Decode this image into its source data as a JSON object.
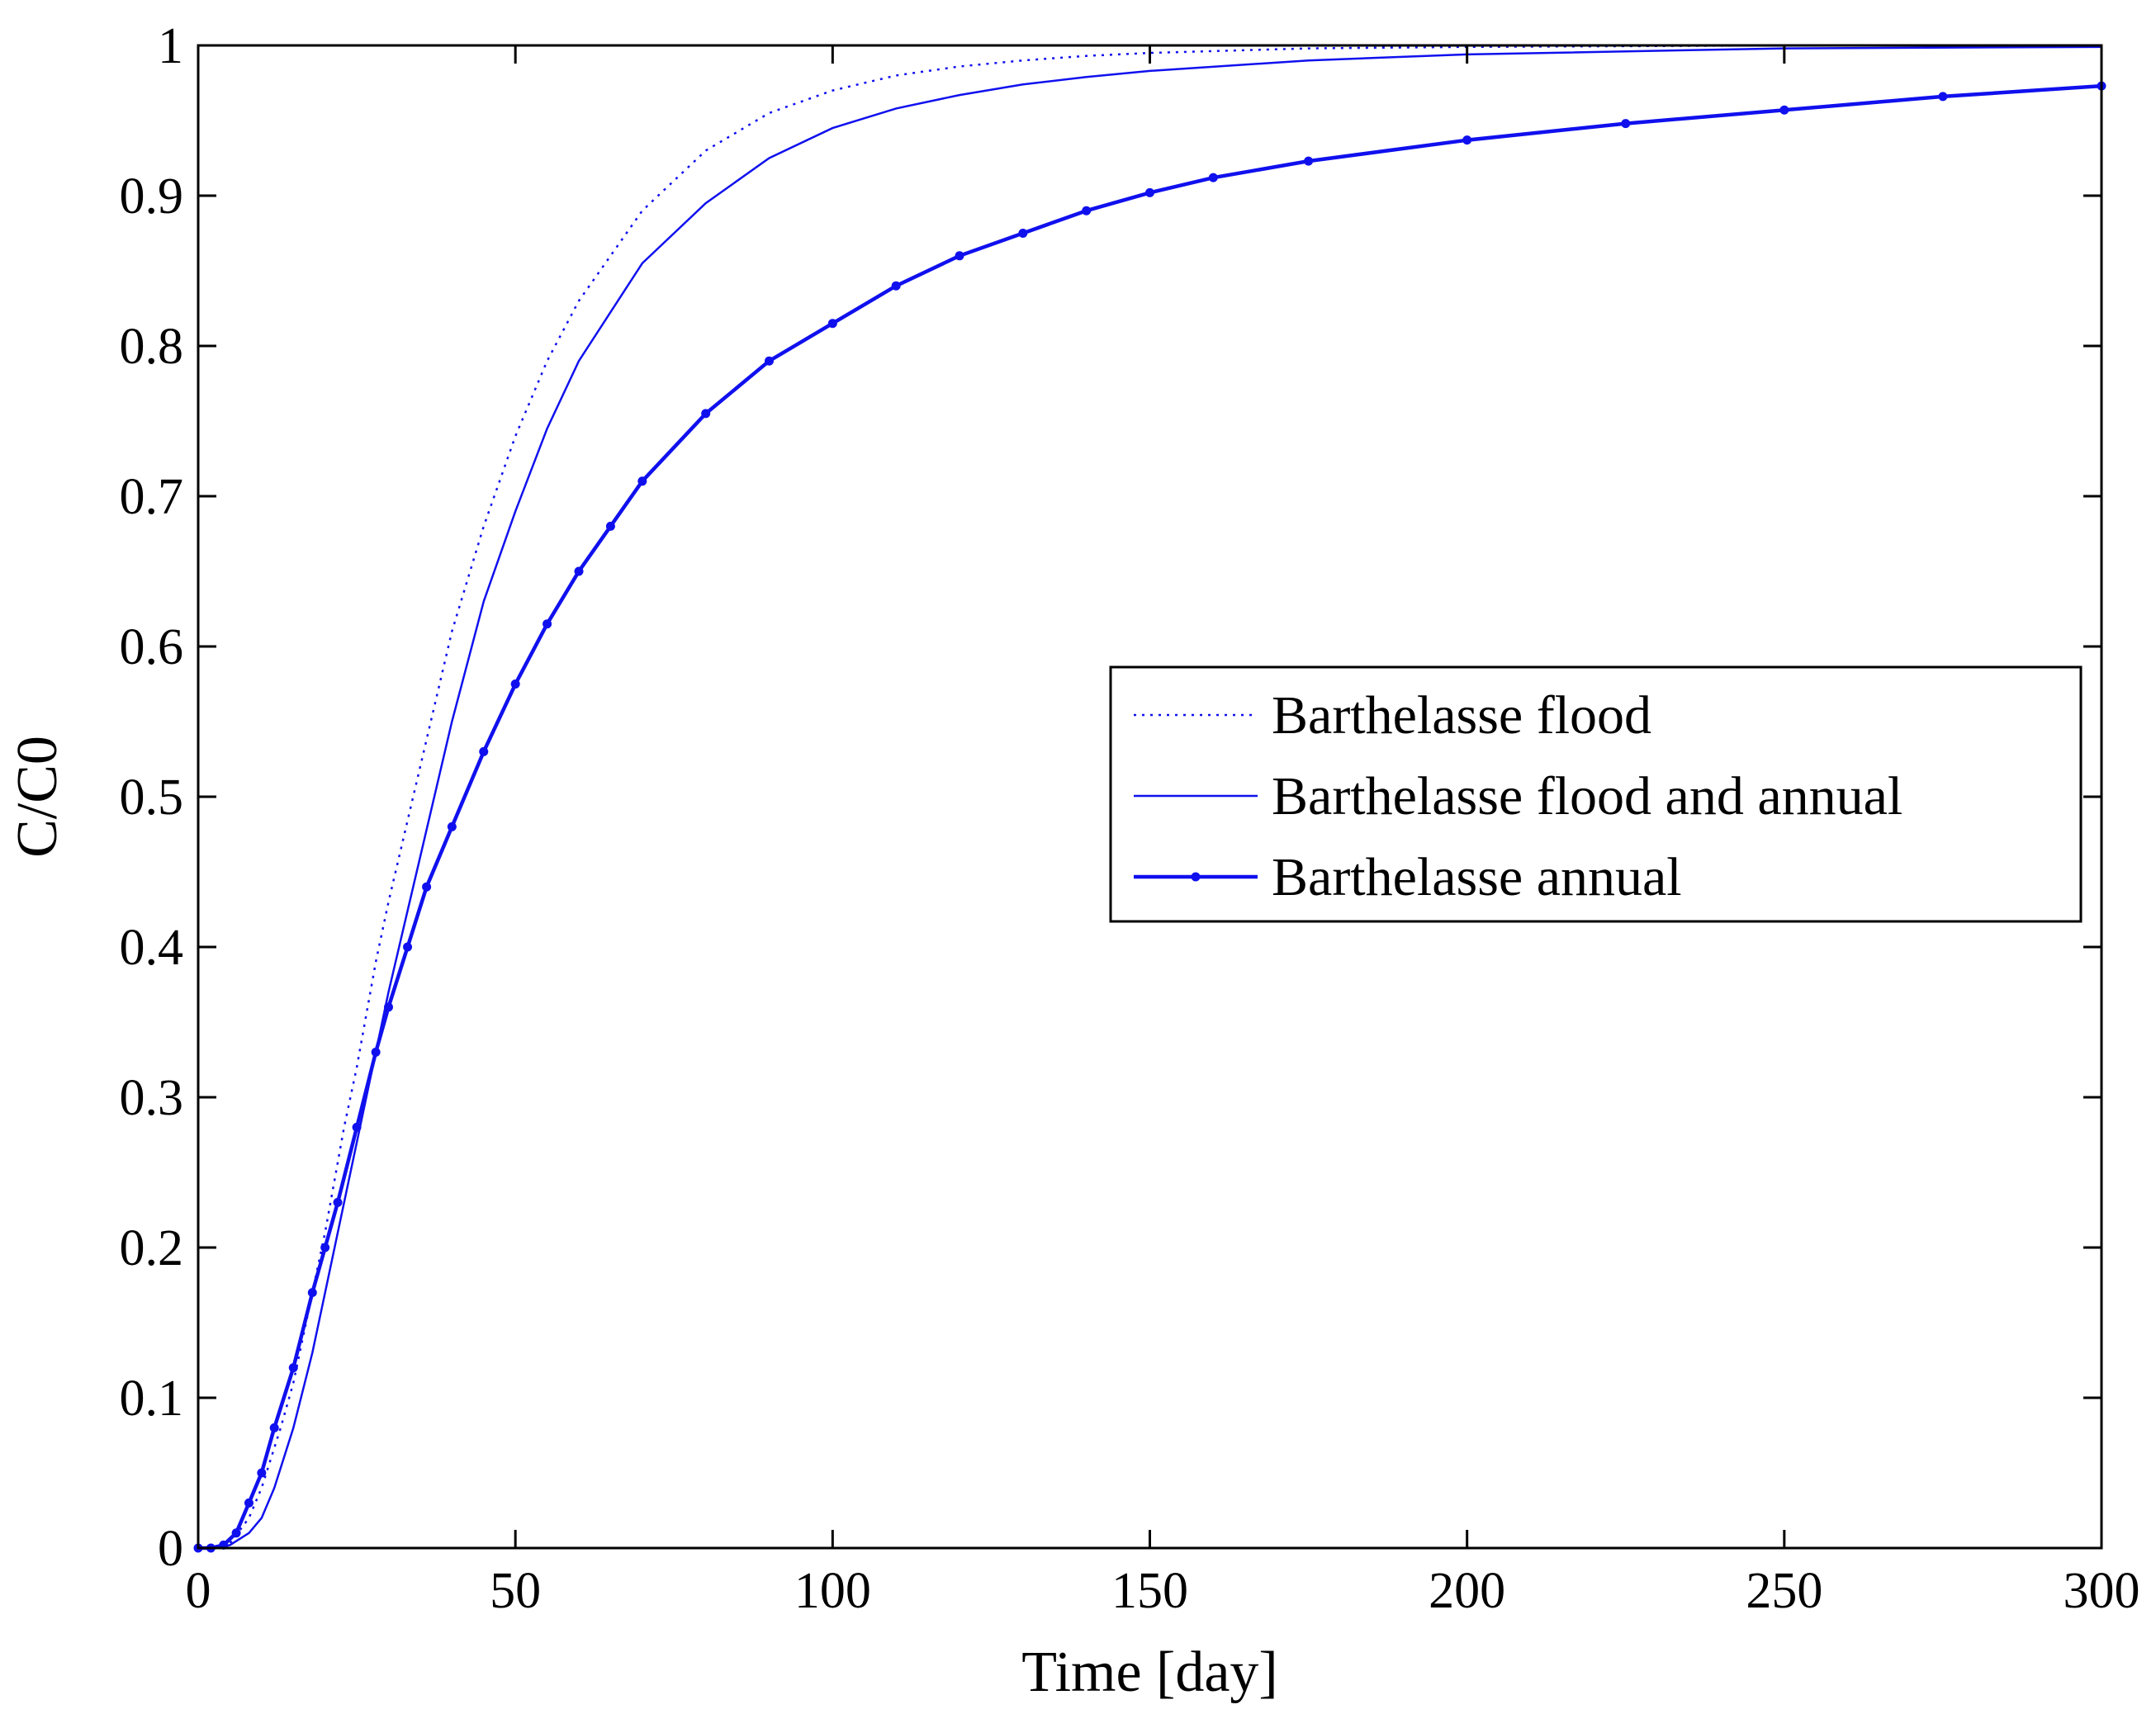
{
  "chart_data": {
    "type": "line",
    "title": "",
    "xlabel": "Time [day]",
    "ylabel": "C/C0",
    "xlim": [
      0,
      300
    ],
    "ylim": [
      0,
      1
    ],
    "xticks": [
      0,
      50,
      100,
      150,
      200,
      250,
      300
    ],
    "yticks": [
      0,
      0.1,
      0.2,
      0.3,
      0.4,
      0.5,
      0.6,
      0.7,
      0.8,
      0.9,
      1
    ],
    "xtick_labels": [
      "0",
      "50",
      "100",
      "150",
      "200",
      "250",
      "300"
    ],
    "ytick_labels": [
      "0",
      "0.1",
      "0.2",
      "0.3",
      "0.4",
      "0.5",
      "0.6",
      "0.7",
      "0.8",
      "0.9",
      "1"
    ],
    "grid": false,
    "legend_position": "right",
    "line_color": "#1010ee",
    "series": [
      {
        "name": "Barthelasse flood",
        "style": "dotted",
        "x": [
          0,
          3,
          5,
          8,
          10,
          13,
          15,
          18,
          20,
          23,
          25,
          28,
          30,
          35,
          40,
          45,
          50,
          55,
          60,
          70,
          80,
          90,
          100,
          110,
          120,
          130,
          140,
          150,
          175,
          200,
          250,
          280
        ],
        "y": [
          0,
          0,
          0.003,
          0.02,
          0.04,
          0.08,
          0.11,
          0.17,
          0.21,
          0.28,
          0.32,
          0.39,
          0.43,
          0.52,
          0.61,
          0.68,
          0.74,
          0.79,
          0.83,
          0.89,
          0.93,
          0.955,
          0.97,
          0.98,
          0.986,
          0.99,
          0.993,
          0.995,
          0.998,
          0.999,
          1.0,
          1.0
        ]
      },
      {
        "name": "Barthelasse flood and annual",
        "style": "solid",
        "x": [
          0,
          3,
          5,
          8,
          10,
          12,
          15,
          18,
          20,
          25,
          30,
          35,
          40,
          45,
          50,
          55,
          60,
          70,
          80,
          90,
          100,
          110,
          120,
          130,
          140,
          150,
          175,
          200,
          250,
          300
        ],
        "y": [
          0,
          0,
          0.002,
          0.01,
          0.02,
          0.04,
          0.08,
          0.13,
          0.17,
          0.27,
          0.37,
          0.46,
          0.55,
          0.63,
          0.69,
          0.745,
          0.79,
          0.855,
          0.895,
          0.925,
          0.945,
          0.958,
          0.967,
          0.974,
          0.979,
          0.983,
          0.99,
          0.994,
          0.998,
          0.999
        ]
      },
      {
        "name": "Barthelasse annual",
        "style": "solid-markers",
        "x": [
          0,
          2,
          4,
          6,
          8,
          10,
          12,
          15,
          18,
          20,
          22,
          25,
          28,
          30,
          33,
          36,
          40,
          45,
          50,
          55,
          60,
          65,
          70,
          80,
          90,
          100,
          110,
          120,
          130,
          140,
          150,
          160,
          175,
          200,
          225,
          250,
          275,
          300
        ],
        "y": [
          0,
          0,
          0.002,
          0.01,
          0.03,
          0.05,
          0.08,
          0.12,
          0.17,
          0.2,
          0.23,
          0.28,
          0.33,
          0.36,
          0.4,
          0.44,
          0.48,
          0.53,
          0.575,
          0.615,
          0.65,
          0.68,
          0.71,
          0.755,
          0.79,
          0.815,
          0.84,
          0.86,
          0.875,
          0.89,
          0.902,
          0.912,
          0.923,
          0.937,
          0.948,
          0.957,
          0.966,
          0.973
        ]
      }
    ]
  }
}
